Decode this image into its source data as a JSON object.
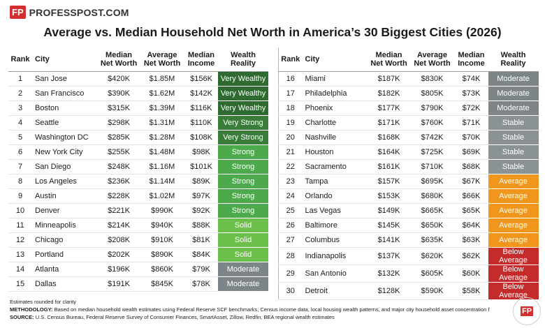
{
  "header": {
    "logo_mark": "FP",
    "brand": "PROFESSPOST.COM",
    "title": "Average vs. Median Household Net Worth in America’s 30 Biggest Cities (2026)"
  },
  "columns": [
    "Rank",
    "City",
    "Median\nNet Worth",
    "Average\nNet Worth",
    "Median\nIncome",
    "Wealth\nReality"
  ],
  "tables": [
    {
      "rows": [
        [
          1,
          "San Jose",
          "$420K",
          "$1.85M",
          "$156K",
          "Very Wealthy",
          "#2f6b30"
        ],
        [
          2,
          "San Francisco",
          "$390K",
          "$1.62M",
          "$142K",
          "Very Wealthy",
          "#2f6b30"
        ],
        [
          3,
          "Boston",
          "$315K",
          "$1.39M",
          "$116K",
          "Very Wealthy",
          "#2f6b30"
        ],
        [
          4,
          "Seattle",
          "$298K",
          "$1.31M",
          "$110K",
          "Very Strong",
          "#3a7d3b"
        ],
        [
          5,
          "Washington DC",
          "$285K",
          "$1.28M",
          "$108K",
          "Very Strong",
          "#3a7d3b"
        ],
        [
          6,
          "New York City",
          "$255K",
          "$1.48M",
          "$98K",
          "Strong",
          "#4caa4c"
        ],
        [
          7,
          "San Diego",
          "$248K",
          "$1.16M",
          "$101K",
          "Strong",
          "#4caa4c"
        ],
        [
          8,
          "Los Angeles",
          "$236K",
          "$1.14M",
          "$89K",
          "Strong",
          "#4caa4c"
        ],
        [
          9,
          "Austin",
          "$228K",
          "$1.02M",
          "$97K",
          "Strong",
          "#4caa4c"
        ],
        [
          10,
          "Denver",
          "$221K",
          "$990K",
          "$92K",
          "Strong",
          "#4caa4c"
        ],
        [
          11,
          "Minneapolis",
          "$214K",
          "$940K",
          "$88K",
          "Solid",
          "#6dbf4b"
        ],
        [
          12,
          "Chicago",
          "$208K",
          "$910K",
          "$81K",
          "Solid",
          "#6dbf4b"
        ],
        [
          13,
          "Portland",
          "$202K",
          "$890K",
          "$84K",
          "Solid",
          "#6dbf4b"
        ],
        [
          14,
          "Atlanta",
          "$196K",
          "$860K",
          "$79K",
          "Moderate",
          "#7d8588"
        ],
        [
          15,
          "Dallas",
          "$191K",
          "$845K",
          "$78K",
          "Moderate",
          "#7d8588"
        ]
      ]
    },
    {
      "rows": [
        [
          16,
          "Miami",
          "$187K",
          "$830K",
          "$74K",
          "Moderate",
          "#7d8588"
        ],
        [
          17,
          "Philadelphia",
          "$182K",
          "$805K",
          "$73K",
          "Moderate",
          "#7d8588"
        ],
        [
          18,
          "Phoenix",
          "$177K",
          "$790K",
          "$72K",
          "Moderate",
          "#7d8588"
        ],
        [
          19,
          "Charlotte",
          "$171K",
          "$760K",
          "$71K",
          "Stable",
          "#8a9296"
        ],
        [
          20,
          "Nashville",
          "$168K",
          "$742K",
          "$70K",
          "Stable",
          "#8a9296"
        ],
        [
          21,
          "Houston",
          "$164K",
          "$725K",
          "$69K",
          "Stable",
          "#8a9296"
        ],
        [
          22,
          "Sacramento",
          "$161K",
          "$710K",
          "$68K",
          "Stable",
          "#8a9296"
        ],
        [
          23,
          "Tampa",
          "$157K",
          "$695K",
          "$67K",
          "Average",
          "#f0961c"
        ],
        [
          24,
          "Orlando",
          "$153K",
          "$680K",
          "$66K",
          "Average",
          "#f0961c"
        ],
        [
          25,
          "Las Vegas",
          "$149K",
          "$665K",
          "$65K",
          "Average",
          "#f0961c"
        ],
        [
          26,
          "Baltimore",
          "$145K",
          "$650K",
          "$64K",
          "Average",
          "#f0961c"
        ],
        [
          27,
          "Columbus",
          "$141K",
          "$635K",
          "$63K",
          "Average",
          "#f0961c"
        ],
        [
          28,
          "Indianapolis",
          "$137K",
          "$620K",
          "$62K",
          "Below Average",
          "#c62b2b"
        ],
        [
          29,
          "San Antonio",
          "$132K",
          "$605K",
          "$60K",
          "Below Average",
          "#c62b2b"
        ],
        [
          30,
          "Detroit",
          "$128K",
          "$590K",
          "$58K",
          "Below Average",
          "#c62b2b"
        ]
      ]
    }
  ],
  "footer": {
    "note": "Estimates rounded for clarity",
    "methodology_label": "METHODOLOGY:",
    "methodology": "Based on median household wealth estimates using Federal Reserve SCF benchmarks, Census income data, local housing wealth patterns, and major city household asset concentration f",
    "source_label": "SOURCE:",
    "source": "U.S. Census Bureau, Federal Reserve Survey of Consumer Finances, SmartAsset, Zillow, Redfin, BEA regional wealth estimates"
  }
}
